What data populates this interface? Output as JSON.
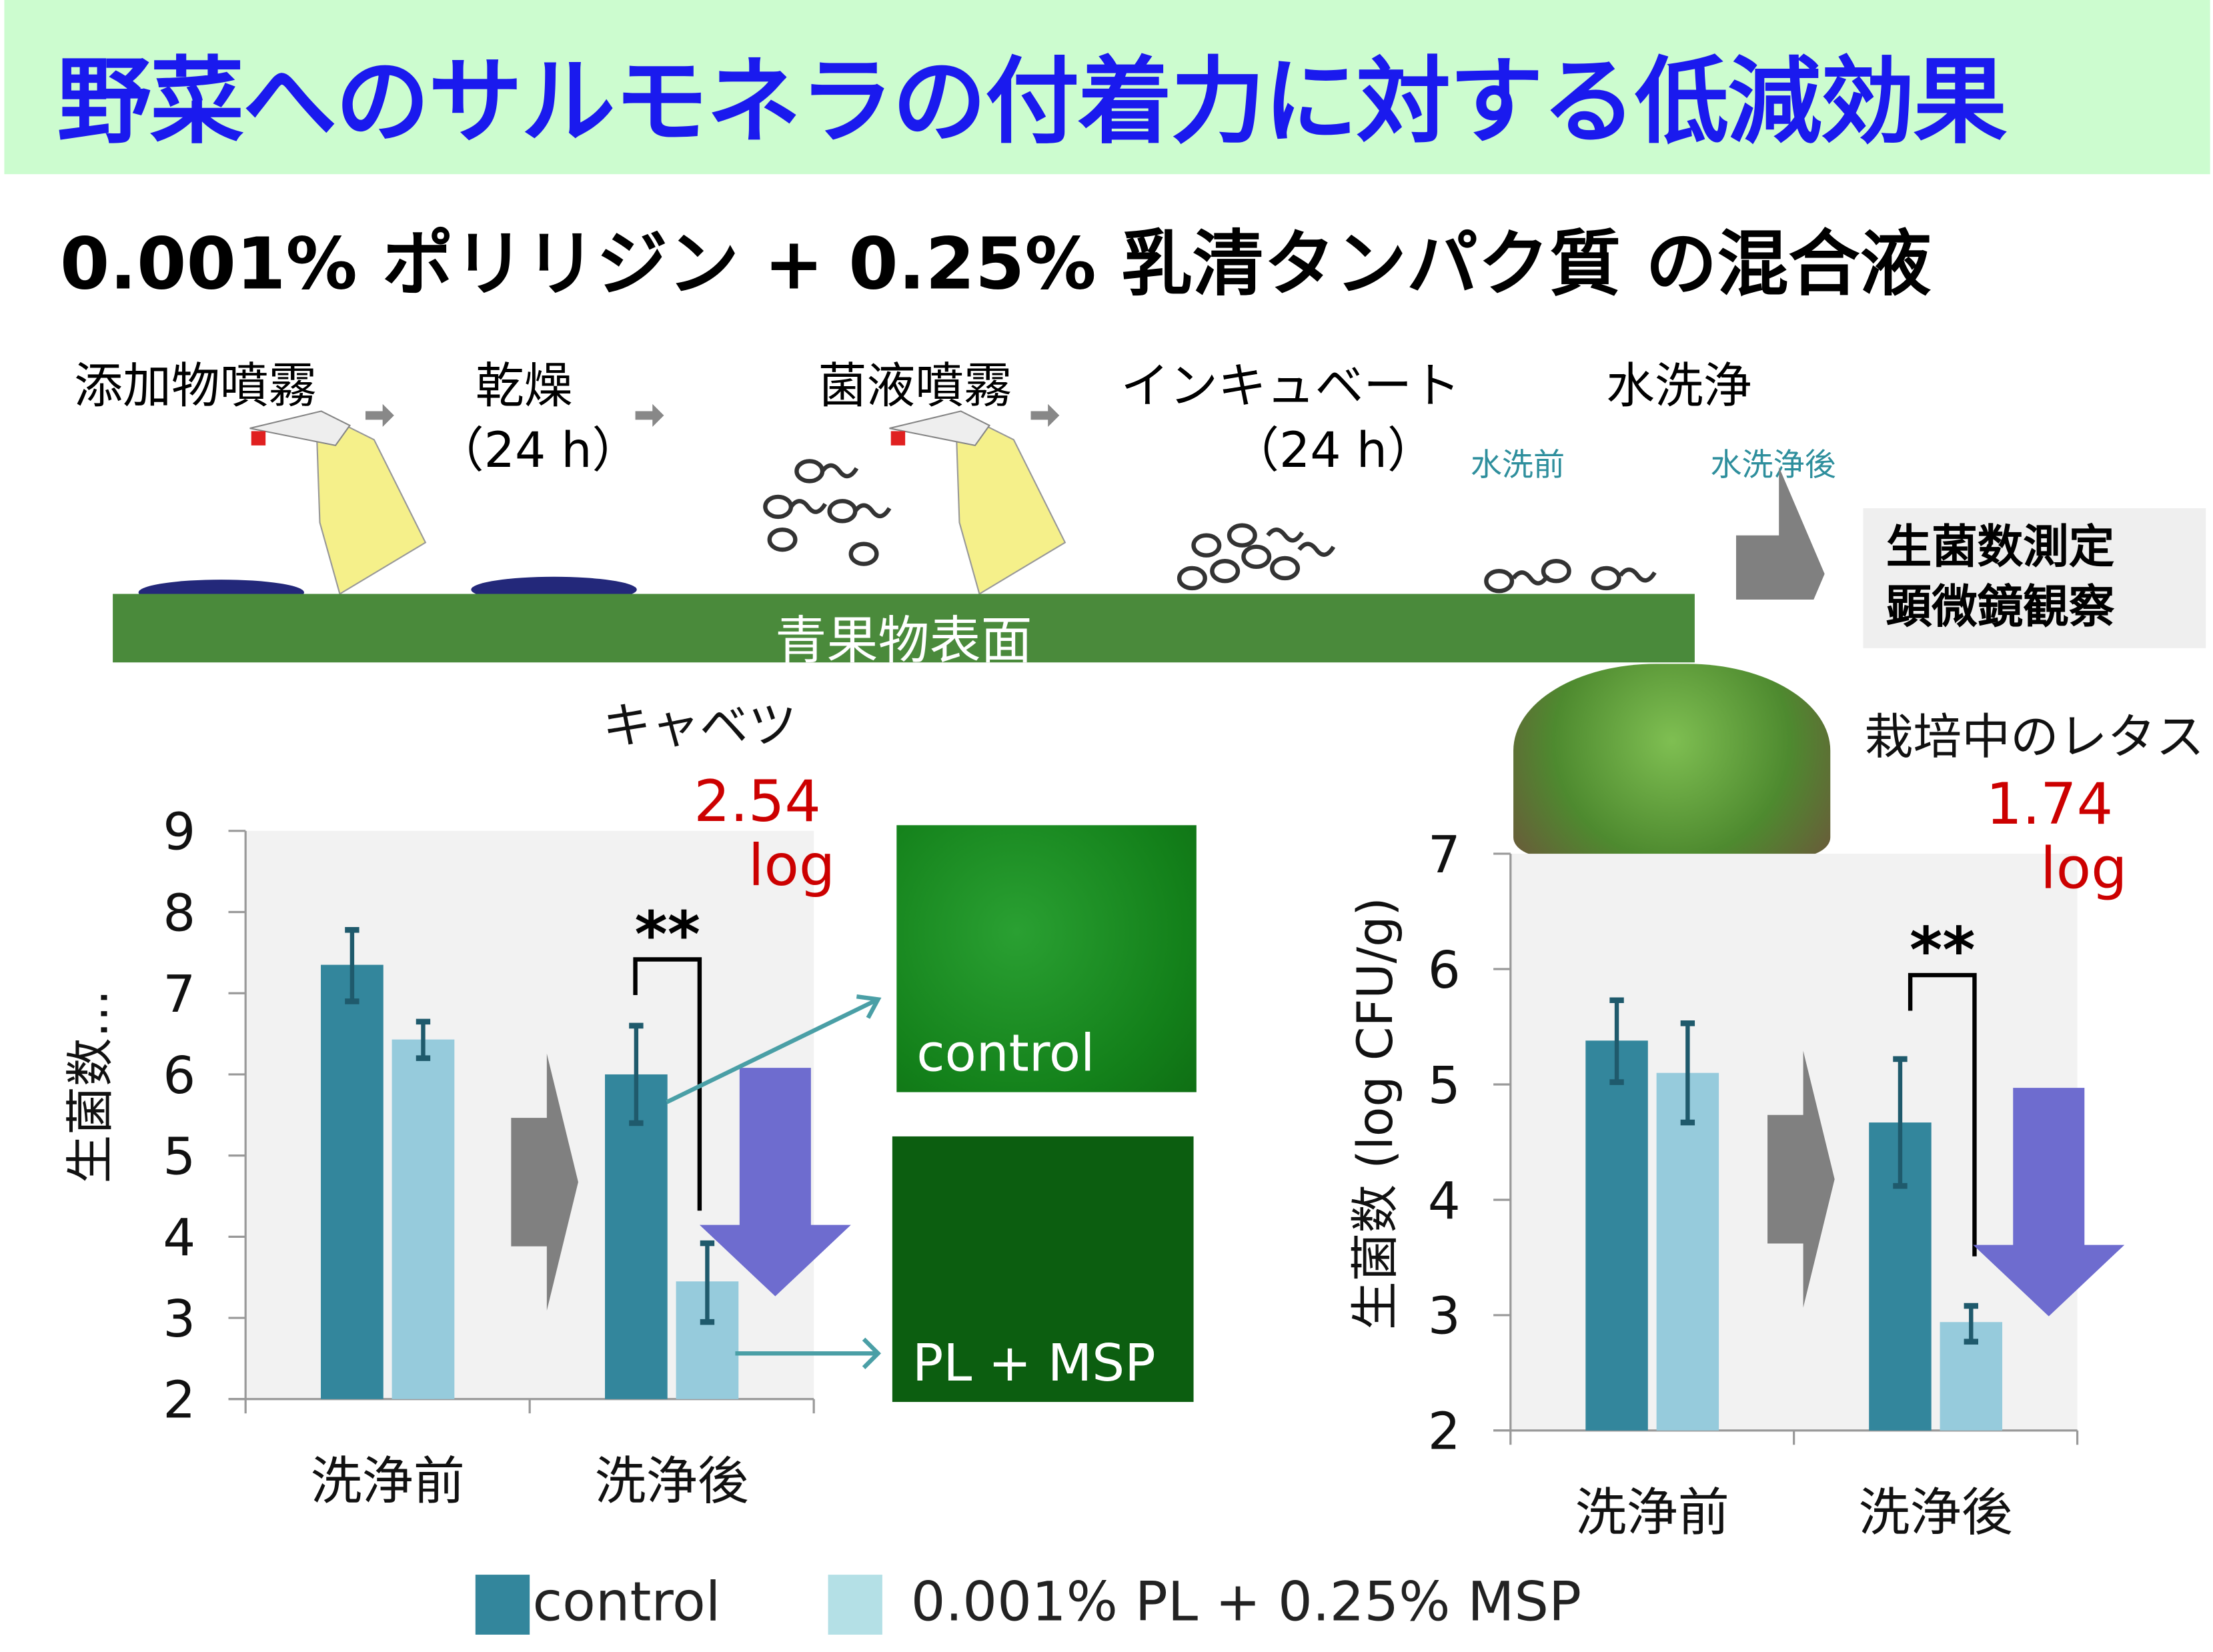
{
  "title": "野菜へのサルモネラの付着力に対する低減効果",
  "subtitle": "0.001% ポリリジン + 0.25% 乳清タンパク質 の混合液",
  "process": {
    "steps": [
      "添加物噴霧",
      "乾燥",
      "菌液噴霧",
      "インキュベート",
      "水洗浄"
    ],
    "durations": [
      "（24 h）",
      "（24 h）"
    ],
    "wash_labels": [
      "水洗前",
      "水洗浄後"
    ],
    "surface_label": "青果物表面",
    "result_lines": [
      "生菌数測定",
      "顕微鏡観察"
    ]
  },
  "micrographs": [
    "control",
    "PL + MSP"
  ],
  "colors": {
    "control": "#33869c",
    "treated": "#96cbdc",
    "error": "#1f5a6c",
    "arrow_down": "#6e6ccf",
    "arrow_gray": "#808080"
  },
  "legend": [
    "control",
    "0.001% PL + 0.25% MSP"
  ],
  "chart_data": [
    {
      "type": "bar",
      "title": "キャベツ",
      "ylabel": "生菌数…",
      "categories": [
        "洗浄前",
        "洗浄後"
      ],
      "ylim": [
        2,
        9
      ],
      "yticks": [
        2,
        3,
        4,
        5,
        6,
        7,
        8,
        9
      ],
      "series": [
        {
          "name": "control",
          "values": [
            7.35,
            6.0
          ],
          "err_low": [
            6.9,
            5.4
          ],
          "err_high": [
            7.78,
            6.6
          ]
        },
        {
          "name": "0.001% PL + 0.25% MSP",
          "values": [
            6.43,
            3.45
          ],
          "err_low": [
            6.2,
            2.95
          ],
          "err_high": [
            6.65,
            3.92
          ]
        }
      ],
      "significance": "**",
      "reduction": [
        "2.54",
        "log"
      ]
    },
    {
      "type": "bar",
      "title": "栽培中のレタス",
      "ylabel": "生菌数 (log CFU/g)",
      "categories": [
        "洗浄前",
        "洗浄後"
      ],
      "ylim": [
        2,
        7
      ],
      "yticks": [
        2,
        3,
        4,
        5,
        6,
        7
      ],
      "series": [
        {
          "name": "control",
          "values": [
            5.38,
            4.67
          ],
          "err_low": [
            5.02,
            4.12
          ],
          "err_high": [
            5.73,
            5.22
          ]
        },
        {
          "name": "0.001% PL + 0.25% MSP",
          "values": [
            5.1,
            2.94
          ],
          "err_low": [
            4.67,
            2.77
          ],
          "err_high": [
            5.53,
            3.08
          ]
        }
      ],
      "significance": "**",
      "reduction": [
        "1.74",
        "log"
      ]
    }
  ]
}
